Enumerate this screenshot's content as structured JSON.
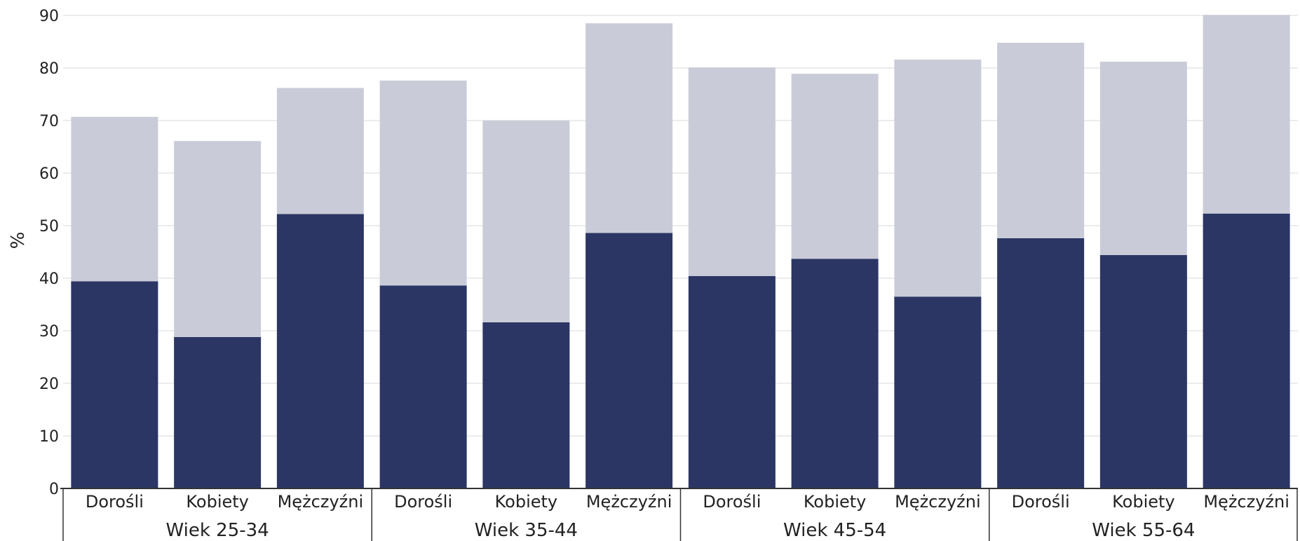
{
  "chart_data": {
    "type": "bar",
    "stacked": true,
    "title": "",
    "xlabel": "",
    "ylabel": "%",
    "ylim": [
      0,
      90
    ],
    "yticks": [
      0,
      10,
      20,
      30,
      40,
      50,
      60,
      70,
      80,
      90
    ],
    "grid": true,
    "legend": "none",
    "groups": [
      {
        "label": "Wiek 25-34",
        "categories": [
          "Dorośli",
          "Kobiety",
          "Mężczyźni"
        ]
      },
      {
        "label": "Wiek 35-44",
        "categories": [
          "Dorośli",
          "Kobiety",
          "Mężczyźni"
        ]
      },
      {
        "label": "Wiek 45-54",
        "categories": [
          "Dorośli",
          "Kobiety",
          "Mężczyźni"
        ]
      },
      {
        "label": "Wiek 55-64",
        "categories": [
          "Dorośli",
          "Kobiety",
          "Mężczyźni"
        ]
      }
    ],
    "series": [
      {
        "color": "#2b3664",
        "values": [
          39.4,
          28.8,
          52.2,
          38.6,
          31.6,
          48.6,
          40.4,
          43.7,
          36.5,
          47.6,
          44.4,
          52.3
        ]
      },
      {
        "color": "#c9ccd8",
        "values": [
          31.3,
          37.3,
          24.0,
          39.0,
          38.4,
          39.9,
          39.7,
          35.2,
          45.1,
          37.2,
          36.8,
          37.8
        ]
      }
    ],
    "totals": [
      70.7,
      66.1,
      76.2,
      77.6,
      70.0,
      88.5,
      80.1,
      78.9,
      81.6,
      84.8,
      81.2,
      90.1
    ]
  },
  "colors": {
    "grid": "#e6e6e6",
    "axis": "#333333"
  }
}
